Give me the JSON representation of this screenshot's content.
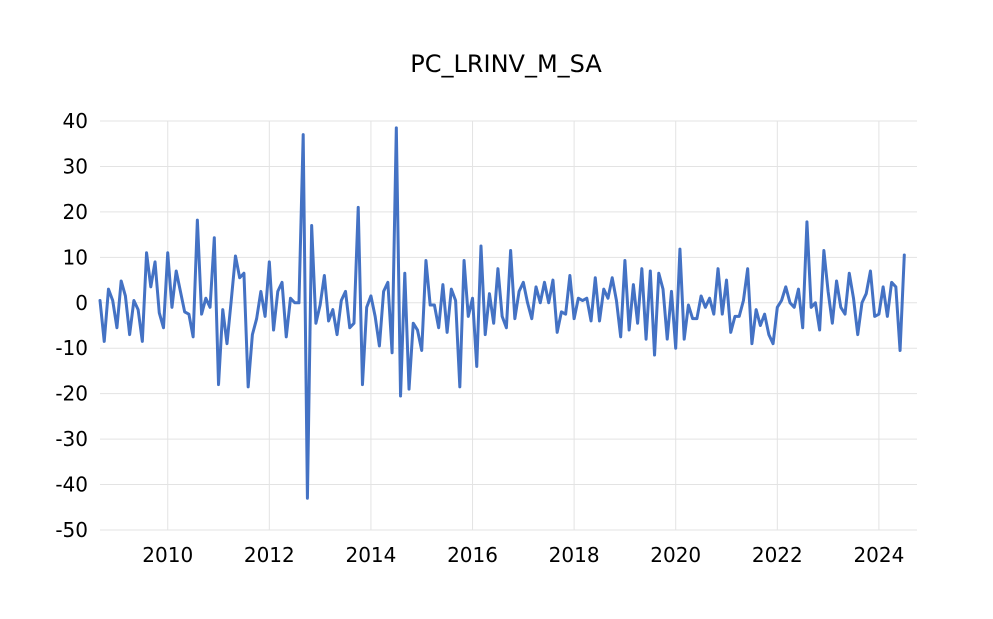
{
  "chart_data": {
    "type": "line",
    "title": "PC_LRINV_M_SA",
    "xlabel": "",
    "ylabel": "",
    "x_range": [
      "2008-09",
      "2024-10"
    ],
    "ylim": [
      -50,
      40
    ],
    "y_ticks": [
      "40",
      "30",
      "20",
      "10",
      "0",
      "-10",
      "-20",
      "-30",
      "-40",
      "-50"
    ],
    "x_ticks": [
      "2010",
      "2012",
      "2014",
      "2016",
      "2018",
      "2020",
      "2022",
      "2024"
    ],
    "grid": true,
    "legend": "none",
    "line_color": "#4472C4",
    "series": [
      {
        "x_start": "2008-09",
        "frequency": "monthly",
        "values": [
          0.5,
          -8.5,
          3,
          0.5,
          -5.5,
          4.8,
          1.5,
          -7,
          0.5,
          -1.5,
          -8.5,
          11,
          3.5,
          9,
          -2.2,
          -5.5,
          11,
          -1,
          7,
          2.5,
          -2,
          -2.5,
          -7.5,
          18.2,
          -2.5,
          1,
          -1,
          14.3,
          -18,
          -1.5,
          -9,
          0.5,
          10.3,
          5.5,
          6.5,
          -18.5,
          -7,
          -3.5,
          2.5,
          -3,
          9,
          -6,
          2.5,
          4.5,
          -7.5,
          1,
          0,
          0,
          37,
          -43,
          17,
          -4.5,
          -0.5,
          6,
          -4,
          -1.5,
          -7,
          0.5,
          2.5,
          -5.5,
          -4.5,
          21,
          -18,
          -1,
          1.5,
          -3,
          -9.5,
          2.5,
          4.5,
          -11,
          38.5,
          -20.5,
          6.5,
          -19,
          -4.5,
          -6,
          -10.5,
          9.3,
          -0.5,
          -0.5,
          -5.5,
          4,
          -6.5,
          3,
          0.5,
          -18.5,
          9.3,
          -3,
          1,
          -14,
          12.5,
          -7,
          2,
          -4.5,
          7.5,
          -3,
          -5.5,
          11.5,
          -3.5,
          2.5,
          4.5,
          0,
          -3.5,
          3.5,
          0,
          4.5,
          0,
          5,
          -6.5,
          -2,
          -2.5,
          6,
          -3.5,
          1,
          0.5,
          1,
          -4,
          5.5,
          -4,
          3,
          1,
          5.5,
          0.5,
          -7.5,
          9.3,
          -6,
          4,
          -4.5,
          7.5,
          -8,
          7,
          -11.5,
          6.5,
          3,
          -8,
          2.5,
          -10,
          11.8,
          -8,
          -0.5,
          -3.5,
          -3.5,
          1.5,
          -1,
          1,
          -2.5,
          7.5,
          -2.5,
          5,
          -6.5,
          -3,
          -3,
          0.5,
          7.5,
          -9,
          -1.5,
          -5,
          -2.5,
          -7,
          -9,
          -1,
          0.5,
          3.5,
          0,
          -1,
          3,
          -5.5,
          17.8,
          -1,
          0,
          -6,
          11.5,
          2.5,
          -4.5,
          4.8,
          -1,
          -2.5,
          6.5,
          1,
          -7,
          0,
          2,
          7,
          -3,
          -2.5,
          3.5,
          -3,
          4.5,
          3.5,
          -10.5,
          10.5
        ]
      }
    ]
  }
}
